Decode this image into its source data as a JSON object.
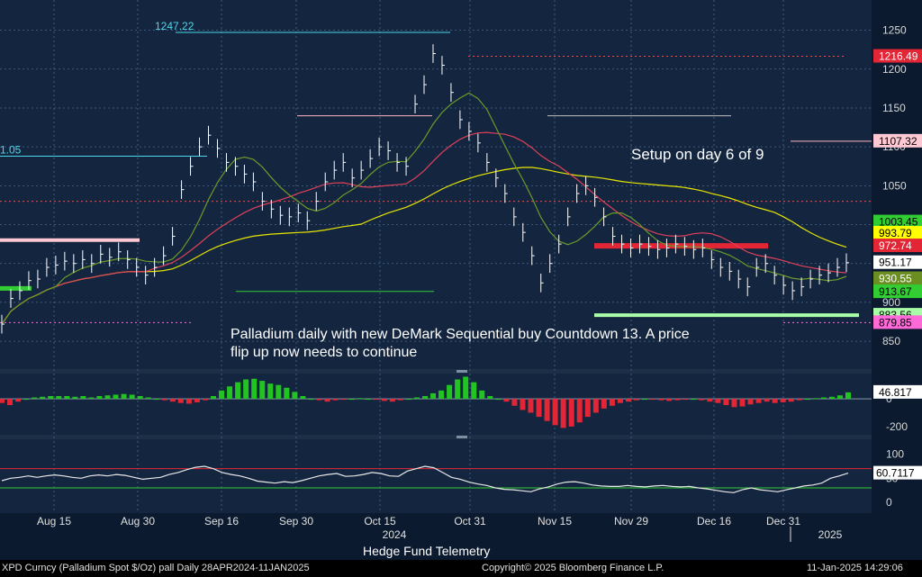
{
  "chart_data": [
    {
      "type": "line",
      "panel": "price",
      "ylim": [
        820,
        1275
      ],
      "y_ticks": [
        850,
        900,
        950,
        1000,
        1050,
        1100,
        1150,
        1200,
        1250
      ],
      "x_ticks": [
        "Aug 15",
        "Aug 30",
        "Sep 16",
        "Sep 30",
        "Oct 15",
        "Oct 31",
        "Nov 15",
        "Nov 29",
        "Dec 16",
        "Dec 31"
      ],
      "x_year_labels": [
        "2024",
        "2025"
      ],
      "grid": true,
      "series": [
        {
          "values": [
            872,
            905,
            915,
            928,
            930,
            945,
            948,
            953,
            950,
            955,
            950,
            962,
            958,
            965,
            955,
            945,
            935,
            945,
            960,
            985,
            1045,
            1075,
            1100,
            1115,
            1098,
            1080,
            1075,
            1065,
            1055,
            1030,
            1020,
            1012,
            1010,
            1015,
            1005,
            1030,
            1055,
            1070,
            1080,
            1060,
            1070,
            1085,
            1100,
            1095,
            1080,
            1075,
            1155,
            1180,
            1220,
            1205,
            1170,
            1135,
            1120,
            1105,
            1080,
            1060,
            1040,
            1010,
            990,
            960,
            925,
            950,
            975,
            1010,
            1040,
            1050,
            1035,
            1010,
            985,
            975,
            970,
            975,
            972,
            968,
            970,
            975,
            972,
            968,
            970,
            955,
            945,
            940,
            930,
            920,
            945,
            950,
            935,
            922,
            915,
            920,
            930,
            935,
            938,
            945,
            951
          ]
        },
        {
          "name": "1247.22",
          "color": "#4dd7e8",
          "value": 1247.22
        },
        {
          "name": "1216.49",
          "color": "#ff4444",
          "value": 1216.49
        },
        {
          "name": "1107.32",
          "color": "#ffb3c0",
          "value": 1107.32
        },
        {
          "name": "883.56",
          "color": "#a8ffa8",
          "value": 883.56
        }
      ],
      "axis_badges": [
        {
          "label": "1216.49",
          "value": 1216.49,
          "bg": "#e32636",
          "fg": "#ffffff"
        },
        {
          "label": "1107.32",
          "value": 1107.32,
          "bg": "#ffc8d2",
          "fg": "#000000"
        },
        {
          "label": "1003.45",
          "value": 1003.45,
          "bg": "#32cd32",
          "fg": "#000000"
        },
        {
          "label": "993.79",
          "value": 989,
          "bg": "#ffff00",
          "fg": "#000000"
        },
        {
          "label": "972.74",
          "value": 972.74,
          "bg": "#e32636",
          "fg": "#ffffff"
        },
        {
          "label": "951.17",
          "value": 951.17,
          "bg": "#ffffff",
          "fg": "#000000"
        },
        {
          "label": "930.55",
          "value": 930.55,
          "bg": "#6b8e23",
          "fg": "#ffffff"
        },
        {
          "label": "913.67",
          "value": 913.67,
          "bg": "#32cd32",
          "fg": "#000000"
        },
        {
          "label": "883.56",
          "value": 883.56,
          "bg": "#a8ffa8",
          "fg": "#000000"
        },
        {
          "label": "879.85",
          "value": 874,
          "bg": "#ff69d8",
          "fg": "#000000"
        }
      ],
      "annotations": [
        {
          "text": "Setup on day 6 of 9"
        },
        {
          "text": "Palladium daily with new DeMark Sequential buy Countdown 13.  A price flip up now needs to continue"
        },
        {
          "text": "1247.22"
        },
        {
          "text": "1.05"
        }
      ]
    },
    {
      "type": "bar",
      "panel": "histogram",
      "ylim": [
        -240,
        150
      ],
      "y_ticks": [
        0,
        -200
      ],
      "badge": "46.817",
      "values": [
        -30,
        -45,
        -20,
        0,
        10,
        15,
        20,
        20,
        20,
        15,
        20,
        10,
        20,
        25,
        30,
        35,
        30,
        20,
        10,
        0,
        -10,
        -20,
        -30,
        -35,
        -25,
        -10,
        20,
        60,
        90,
        120,
        140,
        145,
        130,
        110,
        100,
        80,
        50,
        20,
        0,
        -10,
        -20,
        -10,
        -5,
        0,
        5,
        0,
        -5,
        -15,
        -20,
        -10,
        0,
        10,
        20,
        40,
        60,
        100,
        140,
        160,
        120,
        60,
        20,
        0,
        -20,
        -50,
        -80,
        -100,
        -130,
        -160,
        -190,
        -210,
        -200,
        -170,
        -130,
        -100,
        -70,
        -50,
        -30,
        -20,
        -10,
        0,
        -5,
        -10,
        -15,
        -10,
        -5,
        0,
        -10,
        -20,
        -30,
        -45,
        -60,
        -55,
        -40,
        -30,
        -20,
        -30,
        -25,
        -20,
        -10,
        0,
        5,
        10,
        15,
        25,
        46.817
      ]
    },
    {
      "type": "line",
      "panel": "rsi",
      "ylim": [
        -15,
        120
      ],
      "y_ticks": [
        100,
        50,
        0
      ],
      "badge": "60.7117",
      "upper_line": 70,
      "lower_line": 30,
      "values": [
        45,
        50,
        52,
        55,
        52,
        55,
        57,
        55,
        52,
        50,
        55,
        57,
        55,
        58,
        56,
        52,
        48,
        50,
        52,
        58,
        62,
        68,
        73,
        75,
        70,
        62,
        58,
        55,
        50,
        44,
        42,
        40,
        43,
        41,
        45,
        50,
        55,
        58,
        60,
        54,
        55,
        58,
        62,
        60,
        55,
        54,
        65,
        70,
        75,
        72,
        62,
        52,
        48,
        42,
        38,
        35,
        30,
        27,
        26,
        24,
        22,
        28,
        32,
        38,
        42,
        43,
        40,
        36,
        34,
        33,
        33,
        35,
        33,
        32,
        34,
        35,
        33,
        32,
        33,
        30,
        28,
        25,
        22,
        20,
        26,
        30,
        26,
        24,
        22,
        26,
        30,
        34,
        36,
        40,
        50,
        55,
        60.7117
      ]
    }
  ],
  "footer": {
    "left": "XPD Curncy (Palladium Spot  $/Oz) pall  Daily 28APR2024-11JAN2025",
    "center": "Copyright© 2025 Bloomberg Finance L.P.",
    "right": "11-Jan-2025  14:29:06"
  },
  "credit": "Hedge Fund Telemetry"
}
